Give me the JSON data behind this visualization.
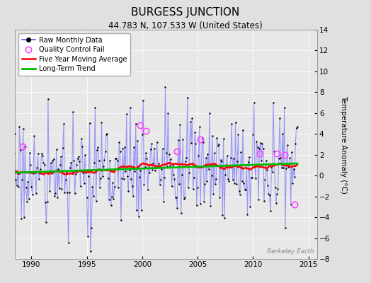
{
  "title": "BURGESS JUNCTION",
  "subtitle": "44.783 N, 107.533 W (United States)",
  "watermark": "Berkeley Earth",
  "ylabel": "Temperature Anomaly (°C)",
  "xlim": [
    1988.5,
    2015.8
  ],
  "ylim": [
    -8,
    14
  ],
  "yticks": [
    -8,
    -6,
    -4,
    -2,
    0,
    2,
    4,
    6,
    8,
    10,
    12,
    14
  ],
  "xticks": [
    1990,
    1995,
    2000,
    2005,
    2010,
    2015
  ],
  "fig_bg_color": "#e0e0e0",
  "plot_bg_color": "#e8e8e8",
  "grid_color": "#ffffff",
  "raw_line_color": "#5555ff",
  "raw_line_alpha": 0.55,
  "raw_line_lw": 0.8,
  "raw_dot_color": "#000000",
  "raw_dot_size": 3,
  "qc_fail_color": "#ff44ff",
  "moving_avg_color": "#ff0000",
  "moving_avg_lw": 1.8,
  "trend_color": "#00bb00",
  "trend_lw": 2.0,
  "seed": 17,
  "n_months": 312,
  "start_year": 1988.083,
  "moving_avg_window": 60
}
